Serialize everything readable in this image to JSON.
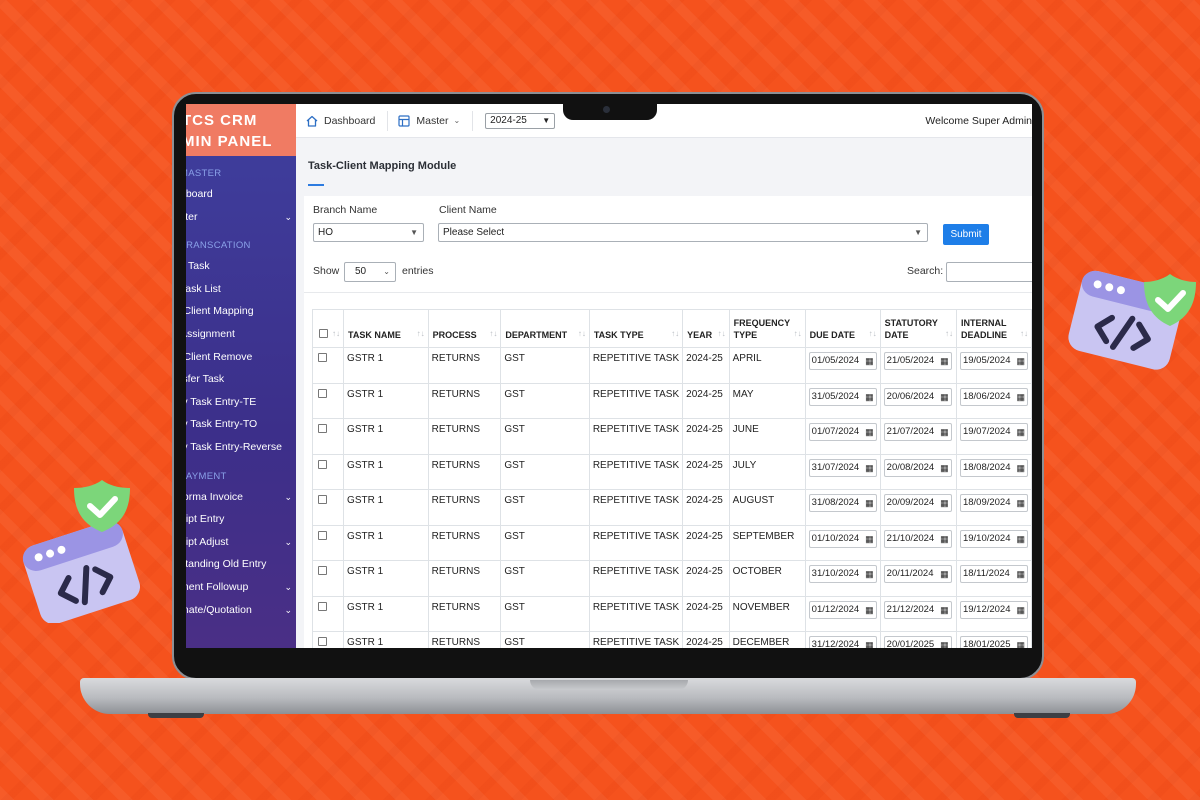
{
  "brand": {
    "line1": "TCS CRM",
    "line2": "MIN PANEL"
  },
  "sidebar": {
    "sections": [
      {
        "title": "MASTER",
        "items": [
          {
            "label": "hboard",
            "chevron": false
          },
          {
            "label": "ster",
            "chevron": true
          }
        ]
      },
      {
        "title": "TRANSCATION",
        "items": [
          {
            "label": "v Task",
            "chevron": false
          },
          {
            "label": "Task List",
            "chevron": false
          },
          {
            "label": "-Client Mapping",
            "chevron": false
          },
          {
            "label": "Assignment",
            "chevron": false
          },
          {
            "label": "-Client Remove",
            "chevron": false
          },
          {
            "label": "isfer Task",
            "chevron": false
          },
          {
            "label": "ly Task Entry-TE",
            "chevron": false
          },
          {
            "label": "ly Task Entry-TO",
            "chevron": false
          },
          {
            "label": "ly Task Entry-Reverse",
            "chevron": false
          }
        ]
      },
      {
        "title": "PAYMENT",
        "items": [
          {
            "label": "forma Invoice",
            "chevron": true
          },
          {
            "label": "eipt Entry",
            "chevron": false
          },
          {
            "label": "eipt Adjust",
            "chevron": true
          },
          {
            "label": "standing Old Entry",
            "chevron": false
          },
          {
            "label": "ment Followup",
            "chevron": true
          },
          {
            "label": "mate/Quotation",
            "chevron": true
          }
        ]
      }
    ]
  },
  "topbar": {
    "dashboard_label": "Dashboard",
    "master_label": "Master",
    "year_value": "2024-25",
    "welcome_text": "Welcome Super Admin"
  },
  "module": {
    "title": "Task-Client Mapping Module"
  },
  "filters": {
    "branch_label": "Branch Name",
    "branch_value": "HO",
    "client_label": "Client Name",
    "client_value": "Please Select",
    "submit_label": "Submit"
  },
  "table_controls": {
    "show_label": "Show",
    "entries_value": "50",
    "entries_label": "entries",
    "search_label": "Search:"
  },
  "table": {
    "columns": [
      "",
      "TASK NAME",
      "PROCESS",
      "DEPARTMENT",
      "TASK TYPE",
      "YEAR",
      "FREQUENCY TYPE",
      "DUE DATE",
      "STATUTORY DATE",
      "INTERNAL DEADLINE"
    ],
    "rows": [
      {
        "task": "GSTR 1",
        "process": "RETURNS",
        "dept": "GST",
        "type": "REPETITIVE TASK",
        "year": "2024-25",
        "freq": "APRIL",
        "due": "01/05/2024",
        "stat": "21/05/2024",
        "internal": "19/05/2024"
      },
      {
        "task": "GSTR 1",
        "process": "RETURNS",
        "dept": "GST",
        "type": "REPETITIVE TASK",
        "year": "2024-25",
        "freq": "MAY",
        "due": "31/05/2024",
        "stat": "20/06/2024",
        "internal": "18/06/2024"
      },
      {
        "task": "GSTR 1",
        "process": "RETURNS",
        "dept": "GST",
        "type": "REPETITIVE TASK",
        "year": "2024-25",
        "freq": "JUNE",
        "due": "01/07/2024",
        "stat": "21/07/2024",
        "internal": "19/07/2024"
      },
      {
        "task": "GSTR 1",
        "process": "RETURNS",
        "dept": "GST",
        "type": "REPETITIVE TASK",
        "year": "2024-25",
        "freq": "JULY",
        "due": "31/07/2024",
        "stat": "20/08/2024",
        "internal": "18/08/2024"
      },
      {
        "task": "GSTR 1",
        "process": "RETURNS",
        "dept": "GST",
        "type": "REPETITIVE TASK",
        "year": "2024-25",
        "freq": "AUGUST",
        "due": "31/08/2024",
        "stat": "20/09/2024",
        "internal": "18/09/2024"
      },
      {
        "task": "GSTR 1",
        "process": "RETURNS",
        "dept": "GST",
        "type": "REPETITIVE TASK",
        "year": "2024-25",
        "freq": "SEPTEMBER",
        "due": "01/10/2024",
        "stat": "21/10/2024",
        "internal": "19/10/2024"
      },
      {
        "task": "GSTR 1",
        "process": "RETURNS",
        "dept": "GST",
        "type": "REPETITIVE TASK",
        "year": "2024-25",
        "freq": "OCTOBER",
        "due": "31/10/2024",
        "stat": "20/11/2024",
        "internal": "18/11/2024"
      },
      {
        "task": "GSTR 1",
        "process": "RETURNS",
        "dept": "GST",
        "type": "REPETITIVE TASK",
        "year": "2024-25",
        "freq": "NOVEMBER",
        "due": "01/12/2024",
        "stat": "21/12/2024",
        "internal": "19/12/2024"
      },
      {
        "task": "GSTR 1",
        "process": "RETURNS",
        "dept": "GST",
        "type": "REPETITIVE TASK",
        "year": "2024-25",
        "freq": "DECEMBER",
        "due": "31/12/2024",
        "stat": "20/01/2025",
        "internal": "18/01/2025"
      }
    ]
  },
  "colors": {
    "background": "#f5521d",
    "brand_header": "#f07b63",
    "sidebar": "#3f3f9e",
    "accent": "#1e7ee8"
  },
  "icons": {
    "dashboard": "home-icon",
    "master": "grid-icon",
    "decor": [
      "code-window-icon",
      "shield-check-icon"
    ]
  }
}
